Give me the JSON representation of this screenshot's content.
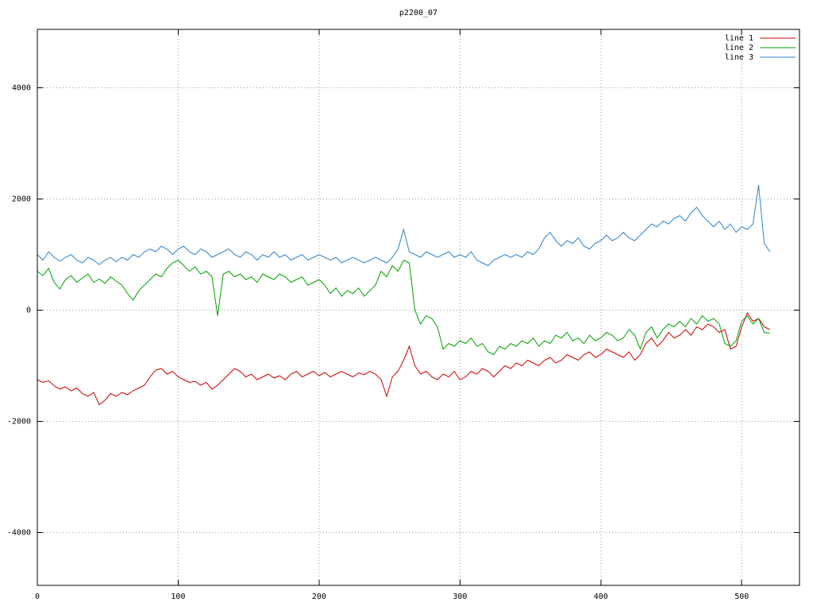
{
  "chart_data": {
    "type": "line",
    "title": "p2200_07",
    "xlabel": "",
    "ylabel": "",
    "xlim": [
      0,
      541
    ],
    "ylim": [
      -4950,
      5050
    ],
    "xticks": [
      0,
      100,
      200,
      300,
      400,
      500
    ],
    "yticks": [
      -4000,
      -2000,
      0,
      2000,
      4000
    ],
    "grid": true,
    "grid_style": "dotted",
    "legend_position": "top-right",
    "background": "#ffffff",
    "border_color": "#000000",
    "x_start": 0,
    "x_step": 4,
    "series": [
      {
        "name": "line 1",
        "color": "#cc0000",
        "values": [
          -1250,
          -1300,
          -1270,
          -1360,
          -1420,
          -1380,
          -1450,
          -1400,
          -1500,
          -1550,
          -1480,
          -1700,
          -1620,
          -1500,
          -1550,
          -1480,
          -1520,
          -1450,
          -1400,
          -1350,
          -1200,
          -1080,
          -1050,
          -1150,
          -1100,
          -1200,
          -1250,
          -1300,
          -1280,
          -1350,
          -1300,
          -1420,
          -1350,
          -1250,
          -1150,
          -1050,
          -1100,
          -1200,
          -1150,
          -1250,
          -1200,
          -1150,
          -1220,
          -1180,
          -1250,
          -1150,
          -1100,
          -1200,
          -1150,
          -1100,
          -1180,
          -1120,
          -1200,
          -1150,
          -1100,
          -1150,
          -1200,
          -1130,
          -1160,
          -1100,
          -1150,
          -1250,
          -1550,
          -1200,
          -1100,
          -900,
          -650,
          -1000,
          -1150,
          -1100,
          -1200,
          -1250,
          -1150,
          -1200,
          -1100,
          -1250,
          -1200,
          -1100,
          -1150,
          -1050,
          -1100,
          -1200,
          -1100,
          -1000,
          -1050,
          -950,
          -1000,
          -900,
          -950,
          -1000,
          -900,
          -850,
          -950,
          -900,
          -800,
          -850,
          -900,
          -800,
          -750,
          -850,
          -800,
          -700,
          -750,
          -800,
          -850,
          -750,
          -900,
          -800,
          -600,
          -500,
          -650,
          -550,
          -400,
          -500,
          -450,
          -350,
          -450,
          -300,
          -350,
          -250,
          -300,
          -400,
          -350,
          -700,
          -650,
          -300,
          -50,
          -200,
          -150,
          -300,
          -350
        ]
      },
      {
        "name": "line 2",
        "color": "#00a000",
        "values": [
          700,
          620,
          750,
          500,
          380,
          550,
          620,
          500,
          580,
          650,
          500,
          560,
          480,
          600,
          520,
          450,
          300,
          180,
          350,
          450,
          550,
          650,
          600,
          750,
          850,
          900,
          800,
          700,
          780,
          650,
          700,
          600,
          -100,
          650,
          700,
          600,
          650,
          550,
          600,
          500,
          650,
          600,
          550,
          650,
          600,
          500,
          550,
          600,
          450,
          500,
          550,
          450,
          300,
          400,
          250,
          350,
          300,
          400,
          250,
          350,
          450,
          700,
          600,
          800,
          700,
          900,
          850,
          0,
          -250,
          -100,
          -150,
          -300,
          -700,
          -600,
          -650,
          -550,
          -600,
          -500,
          -650,
          -600,
          -750,
          -800,
          -650,
          -700,
          -600,
          -650,
          -550,
          -600,
          -500,
          -650,
          -550,
          -600,
          -450,
          -500,
          -400,
          -550,
          -500,
          -600,
          -450,
          -550,
          -500,
          -400,
          -450,
          -550,
          -500,
          -350,
          -450,
          -700,
          -400,
          -300,
          -500,
          -350,
          -250,
          -300,
          -200,
          -300,
          -150,
          -250,
          -100,
          -200,
          -150,
          -250,
          -600,
          -650,
          -550,
          -200,
          -100,
          -250,
          -150,
          -400,
          -420
        ]
      },
      {
        "name": "line 3",
        "color": "#3080c8",
        "values": [
          1000,
          900,
          1050,
          950,
          880,
          950,
          1000,
          900,
          850,
          950,
          900,
          820,
          900,
          950,
          870,
          950,
          900,
          1000,
          950,
          1050,
          1100,
          1050,
          1150,
          1100,
          1000,
          1100,
          1150,
          1050,
          1000,
          1100,
          1050,
          950,
          1000,
          1050,
          1100,
          1000,
          950,
          1050,
          1000,
          900,
          1000,
          950,
          1050,
          950,
          1000,
          900,
          950,
          1000,
          900,
          950,
          1000,
          950,
          900,
          950,
          850,
          900,
          950,
          900,
          850,
          900,
          950,
          900,
          850,
          950,
          1100,
          1450,
          1050,
          1000,
          950,
          1050,
          1000,
          950,
          1000,
          1050,
          950,
          1000,
          950,
          1050,
          900,
          850,
          800,
          900,
          950,
          1000,
          950,
          1000,
          950,
          1050,
          1000,
          1100,
          1300,
          1400,
          1250,
          1150,
          1250,
          1200,
          1300,
          1150,
          1100,
          1200,
          1250,
          1350,
          1250,
          1300,
          1400,
          1300,
          1250,
          1350,
          1450,
          1550,
          1500,
          1600,
          1550,
          1650,
          1700,
          1600,
          1750,
          1850,
          1700,
          1600,
          1500,
          1600,
          1450,
          1550,
          1400,
          1500,
          1450,
          1550,
          2250,
          1200,
          1050
        ]
      }
    ]
  }
}
